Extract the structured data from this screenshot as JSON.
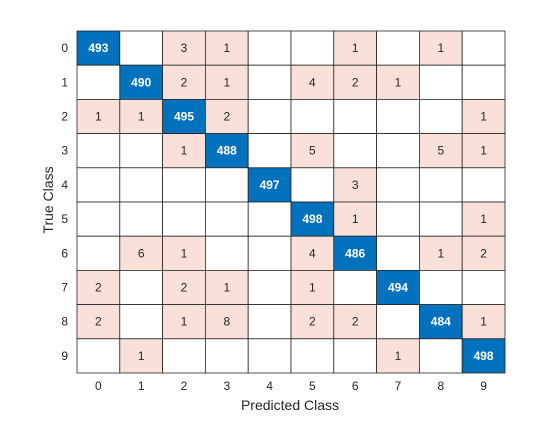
{
  "chart_data": {
    "type": "heatmap",
    "subtype": "confusion-matrix",
    "xlabel": "Predicted Class",
    "ylabel": "True Class",
    "x_categories": [
      "0",
      "1",
      "2",
      "3",
      "4",
      "5",
      "6",
      "7",
      "8",
      "9"
    ],
    "y_categories": [
      "0",
      "1",
      "2",
      "3",
      "4",
      "5",
      "6",
      "7",
      "8",
      "9"
    ],
    "matrix": [
      [
        493,
        0,
        3,
        1,
        0,
        0,
        1,
        0,
        1,
        0
      ],
      [
        0,
        490,
        2,
        1,
        0,
        4,
        2,
        1,
        0,
        0
      ],
      [
        1,
        1,
        495,
        2,
        0,
        0,
        0,
        0,
        0,
        1
      ],
      [
        0,
        0,
        1,
        488,
        0,
        5,
        0,
        0,
        5,
        1
      ],
      [
        0,
        0,
        0,
        0,
        497,
        0,
        3,
        0,
        0,
        0
      ],
      [
        0,
        0,
        0,
        0,
        0,
        498,
        1,
        0,
        0,
        1
      ],
      [
        0,
        6,
        1,
        0,
        0,
        4,
        486,
        0,
        1,
        2
      ],
      [
        2,
        0,
        2,
        1,
        0,
        1,
        0,
        494,
        0,
        0
      ],
      [
        2,
        0,
        1,
        8,
        0,
        2,
        2,
        0,
        484,
        1
      ],
      [
        0,
        1,
        0,
        0,
        0,
        0,
        0,
        1,
        0,
        498
      ]
    ],
    "colors": {
      "diagonal": "#0072bd",
      "diagonal_text": "#ffffff",
      "off_diagonal": "#f9e0d9",
      "off_diagonal_text": "#262626",
      "empty": "#ffffff",
      "grid": "#262626",
      "axis_text": "#262626"
    }
  }
}
